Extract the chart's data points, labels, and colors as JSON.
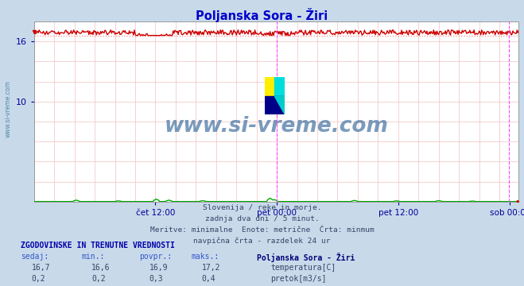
{
  "title": "Poljanska Sora - Žiri",
  "title_color": "#0000cc",
  "bg_color": "#c8daea",
  "plot_bg_color": "#ffffff",
  "temp_color": "#cc0000",
  "temp_min_line_color": "#ff8888",
  "flow_color": "#00aa00",
  "vline_color": "#ff44ff",
  "vline_right_color": "#cc0000",
  "tick_color": "#000099",
  "watermark": "www.si-vreme.com",
  "watermark_color": "#336699",
  "temp_value": 16.7,
  "temp_min": 16.6,
  "temp_avg": 16.9,
  "temp_max": 17.2,
  "flow_value": 0.2,
  "flow_min": 0.2,
  "flow_avg": 0.3,
  "flow_max": 0.4,
  "ylim": [
    0,
    18
  ],
  "ytick_vals": [
    10,
    16
  ],
  "subtitle1": "Slovenija / reke in morje.",
  "subtitle2": "zadnja dva dni / 5 minut.",
  "subtitle3": "Meritve: minimalne  Enote: metrične  Črta: minmum",
  "subtitle4": "navpična črta - razdelek 24 ur",
  "legend_title": "ZGODOVINSKE IN TRENUTNE VREDNOSTI",
  "legend_col1": "sedaj:",
  "legend_col2": "min.:",
  "legend_col3": "povpr.:",
  "legend_col4": "maks.:",
  "legend_station": "Poljanska Sora - Žiri",
  "legend_temp_label": "temperatura[C]",
  "legend_flow_label": "pretok[m3/s]",
  "n_points": 576,
  "temp_base": 16.9,
  "temp_min_val": 16.6,
  "temp_max_val": 17.2,
  "sidebar_text": "www.si-vreme.com",
  "sidebar_color": "#5588aa",
  "tick_labels": [
    "čet 12:00",
    "pet 00:00",
    "pet 12:00",
    "sob 00:00"
  ]
}
